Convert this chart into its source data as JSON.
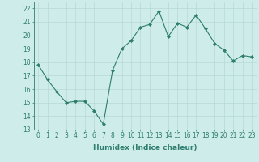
{
  "x": [
    0,
    1,
    2,
    3,
    4,
    5,
    6,
    7,
    8,
    9,
    10,
    11,
    12,
    13,
    14,
    15,
    16,
    17,
    18,
    19,
    20,
    21,
    22,
    23
  ],
  "y": [
    17.8,
    16.7,
    15.8,
    15.0,
    15.1,
    15.1,
    14.4,
    13.4,
    17.4,
    19.0,
    19.6,
    20.6,
    20.8,
    21.8,
    19.9,
    20.9,
    20.6,
    21.5,
    20.5,
    19.4,
    18.9,
    18.1,
    18.5,
    18.4
  ],
  "line_color": "#2e7d6e",
  "marker": "D",
  "marker_size": 2.0,
  "bg_color": "#ceecea",
  "grid_color": "#b8d8d5",
  "xlabel": "Humidex (Indice chaleur)",
  "xlim": [
    -0.5,
    23.5
  ],
  "ylim": [
    13,
    22.5
  ],
  "yticks": [
    13,
    14,
    15,
    16,
    17,
    18,
    19,
    20,
    21,
    22
  ],
  "xticks": [
    0,
    1,
    2,
    3,
    4,
    5,
    6,
    7,
    8,
    9,
    10,
    11,
    12,
    13,
    14,
    15,
    16,
    17,
    18,
    19,
    20,
    21,
    22,
    23
  ],
  "tick_color": "#2e7d6e",
  "label_fontsize": 6.5,
  "tick_fontsize": 5.5
}
